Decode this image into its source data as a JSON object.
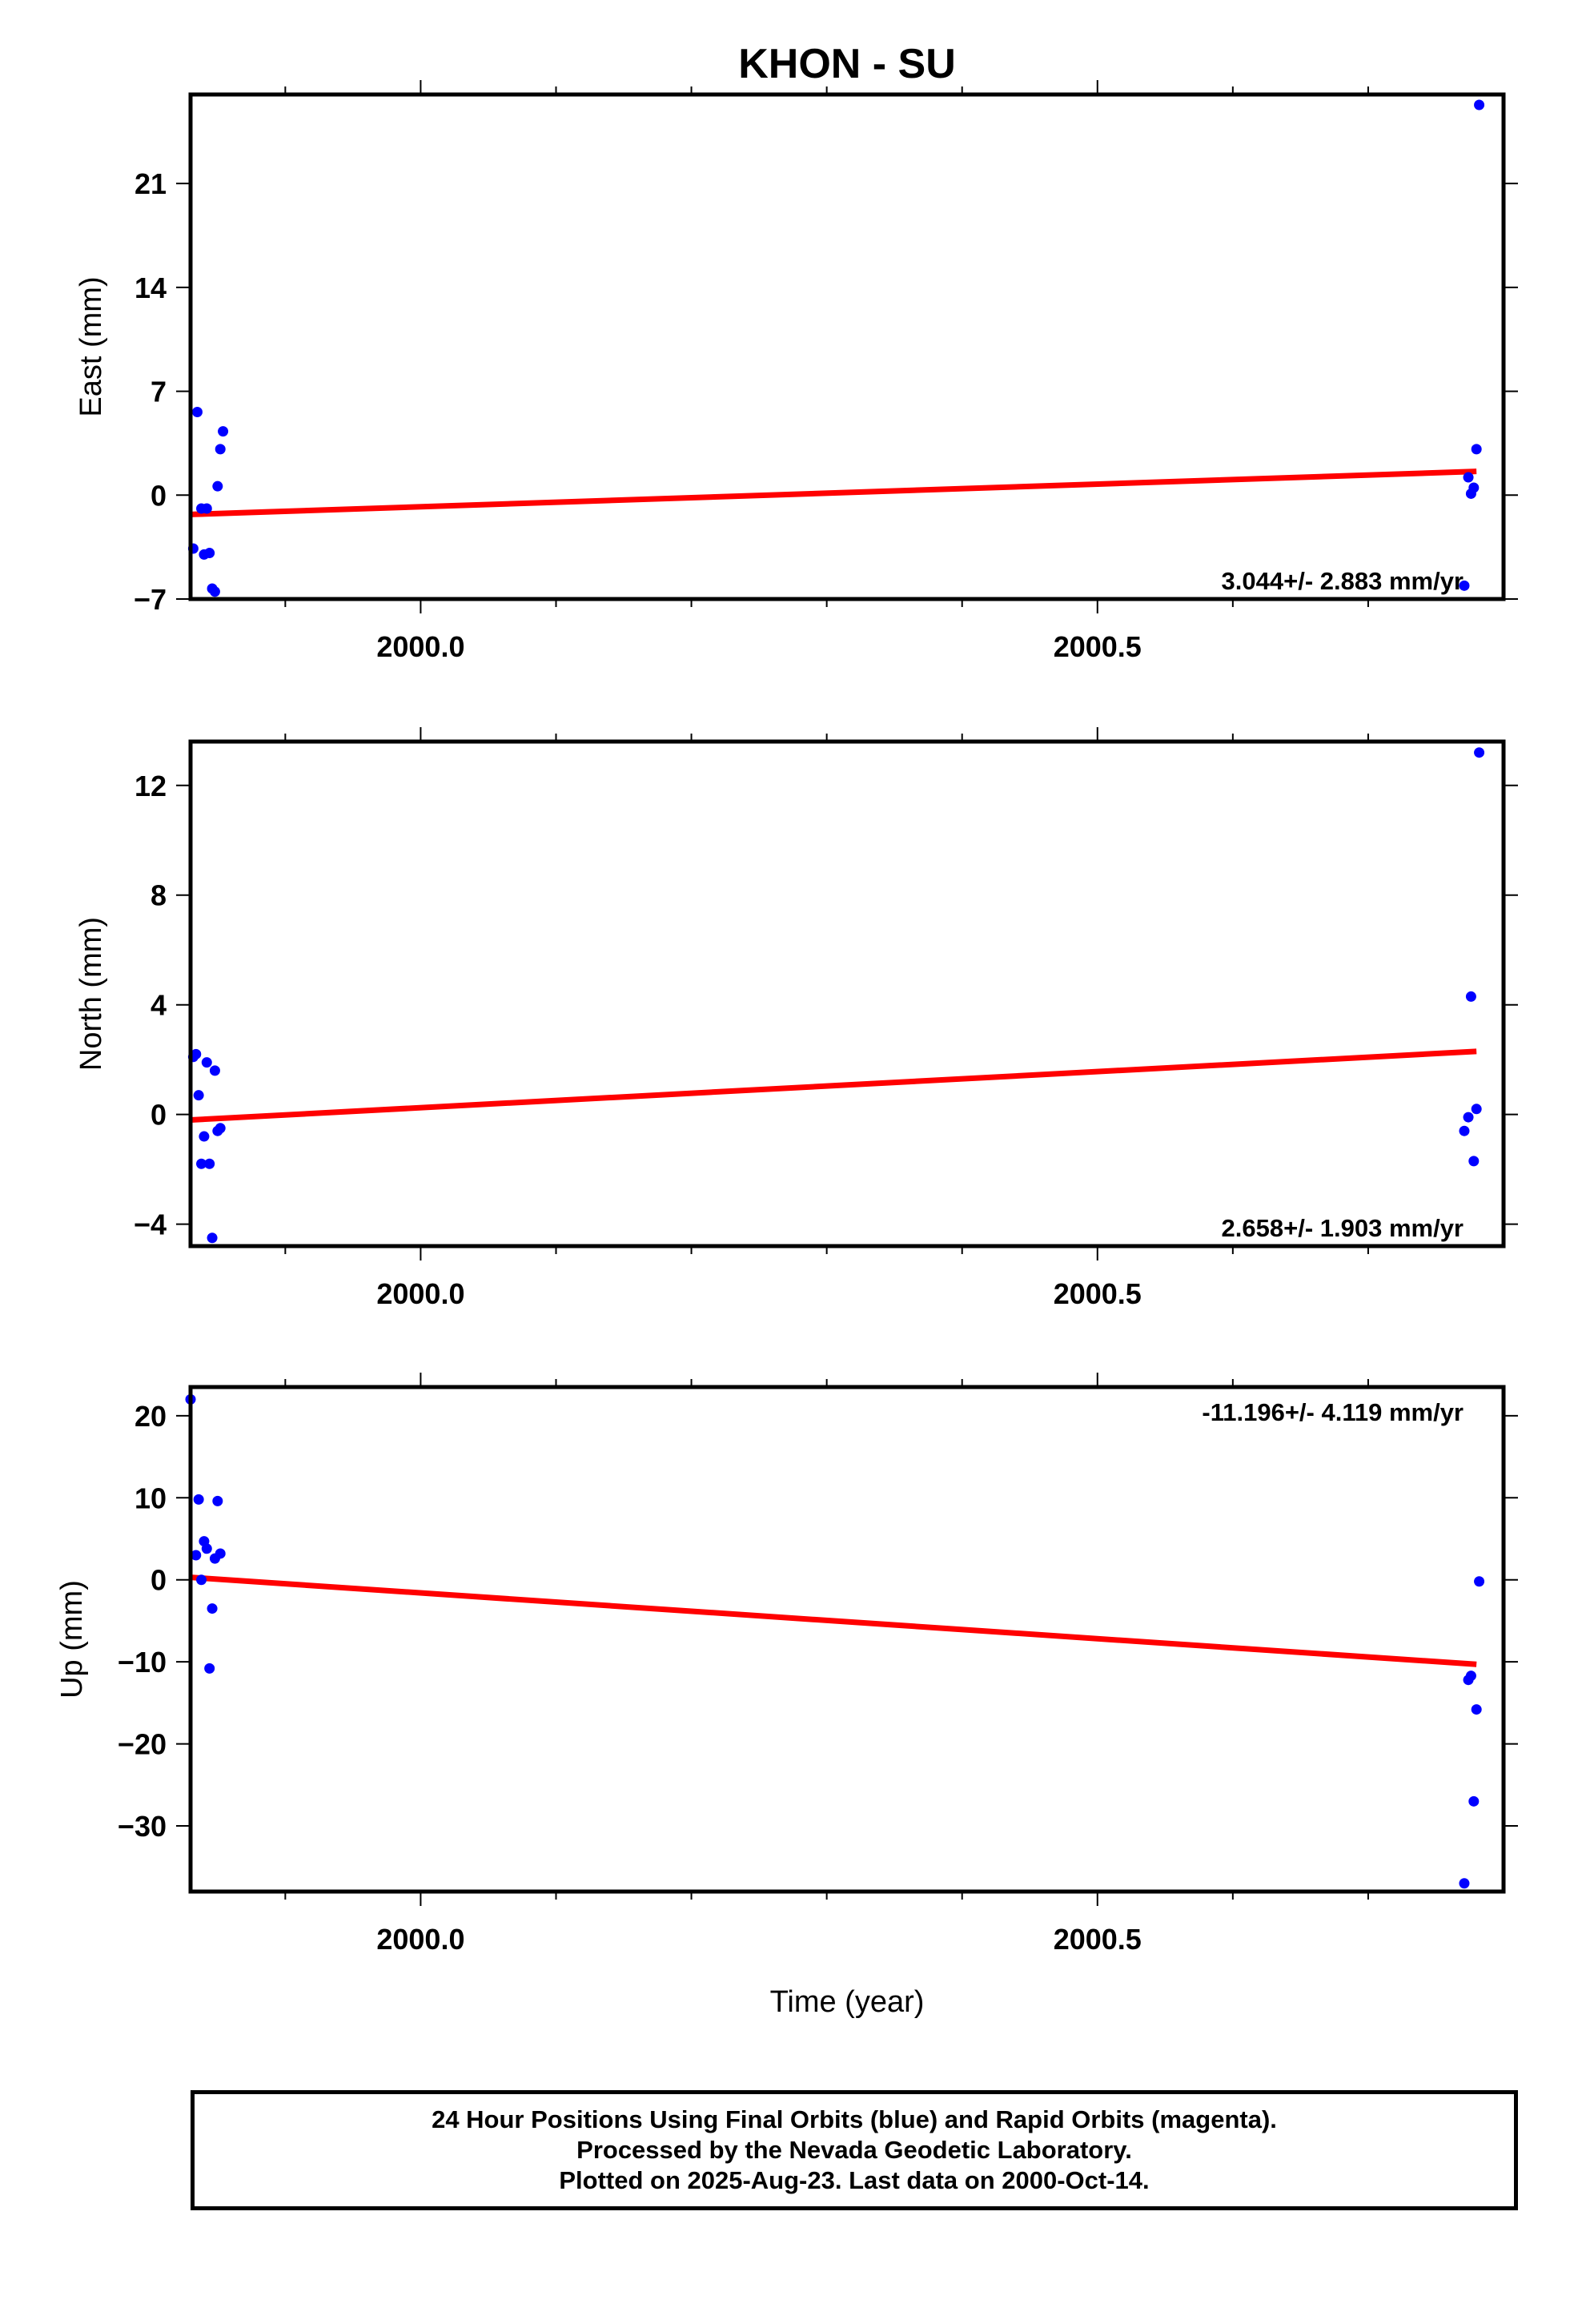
{
  "title": "KHON - SU",
  "colors": {
    "final_orbits": "#0000ff",
    "rapid_orbits": "#ff00ff",
    "trend": "#ff0000",
    "frame": "#000000"
  },
  "chart_data": [
    {
      "type": "scatter",
      "panel": "east",
      "ylabel": "East (mm)",
      "xlabel": "",
      "xlim": [
        1999.83,
        2000.8
      ],
      "ylim": [
        -7,
        27
      ],
      "xticks": [
        2000.0,
        2000.5
      ],
      "xtick_labels": [
        "2000.0",
        "2000.5"
      ],
      "yticks": [
        -7,
        0,
        7,
        14,
        21
      ],
      "ytick_labels": [
        "−7",
        "0",
        "7",
        "14",
        "21"
      ],
      "rate_label": "3.044+/- 2.883 mm/yr",
      "rate_label_position": "bottom-right",
      "series": [
        {
          "points": [
            [
              1999.835,
              5.6
            ],
            [
              1999.832,
              -3.6
            ],
            [
              1999.838,
              -0.9
            ],
            [
              1999.84,
              -4.0
            ],
            [
              1999.842,
              -0.9
            ],
            [
              1999.844,
              -3.9
            ],
            [
              1999.846,
              -6.3
            ],
            [
              1999.848,
              -6.5
            ],
            [
              1999.85,
              0.6
            ],
            [
              1999.852,
              3.1
            ],
            [
              1999.854,
              4.3
            ],
            [
              2000.771,
              -6.1
            ],
            [
              2000.774,
              1.2
            ],
            [
              2000.776,
              0.1
            ],
            [
              2000.778,
              0.5
            ],
            [
              2000.78,
              3.1
            ],
            [
              2000.782,
              26.3
            ]
          ]
        }
      ],
      "trend": [
        [
          1999.83,
          -1.3
        ],
        [
          2000.78,
          1.6
        ]
      ]
    },
    {
      "type": "scatter",
      "panel": "north",
      "ylabel": "North (mm)",
      "xlabel": "",
      "xlim": [
        1999.83,
        2000.8
      ],
      "ylim": [
        -4.8,
        13.6
      ],
      "xticks": [
        2000.0,
        2000.5
      ],
      "xtick_labels": [
        "2000.0",
        "2000.5"
      ],
      "yticks": [
        -4,
        0,
        4,
        8,
        12
      ],
      "ytick_labels": [
        "−4",
        "0",
        "4",
        "8",
        "12"
      ],
      "rate_label": "2.658+/- 1.903 mm/yr",
      "rate_label_position": "bottom-right",
      "series": [
        {
          "points": [
            [
              1999.832,
              2.1
            ],
            [
              1999.834,
              2.2
            ],
            [
              1999.836,
              0.7
            ],
            [
              1999.838,
              -1.8
            ],
            [
              1999.84,
              -0.8
            ],
            [
              1999.842,
              1.9
            ],
            [
              1999.844,
              -1.8
            ],
            [
              1999.846,
              -4.5
            ],
            [
              1999.848,
              1.6
            ],
            [
              1999.85,
              -0.6
            ],
            [
              1999.852,
              -0.5
            ],
            [
              2000.771,
              -0.6
            ],
            [
              2000.774,
              -0.1
            ],
            [
              2000.776,
              4.3
            ],
            [
              2000.778,
              -1.7
            ],
            [
              2000.78,
              0.2
            ],
            [
              2000.782,
              13.2
            ]
          ]
        }
      ],
      "trend": [
        [
          1999.83,
          -0.2
        ],
        [
          2000.78,
          2.3
        ]
      ]
    },
    {
      "type": "scatter",
      "panel": "up",
      "ylabel": "Up (mm)",
      "xlabel": "Time (year)",
      "xlim": [
        1999.83,
        2000.8
      ],
      "ylim": [
        -38,
        23.5
      ],
      "xticks": [
        2000.0,
        2000.5
      ],
      "xtick_labels": [
        "2000.0",
        "2000.5"
      ],
      "yticks": [
        -30,
        -20,
        -10,
        0,
        10,
        20
      ],
      "ytick_labels": [
        "−30",
        "−20",
        "−10",
        "0",
        "10",
        "20"
      ],
      "rate_label": "-11.196+/- 4.119 mm/yr",
      "rate_label_position": "top-right",
      "series": [
        {
          "points": [
            [
              1999.83,
              22.0
            ],
            [
              1999.834,
              3.0
            ],
            [
              1999.836,
              9.8
            ],
            [
              1999.838,
              0.0
            ],
            [
              1999.84,
              4.7
            ],
            [
              1999.842,
              3.8
            ],
            [
              1999.844,
              -10.8
            ],
            [
              1999.846,
              -3.5
            ],
            [
              1999.848,
              2.6
            ],
            [
              1999.85,
              9.6
            ],
            [
              1999.852,
              3.2
            ],
            [
              2000.771,
              -37.0
            ],
            [
              2000.774,
              -12.2
            ],
            [
              2000.776,
              -11.7
            ],
            [
              2000.778,
              -27.0
            ],
            [
              2000.78,
              -15.8
            ],
            [
              2000.782,
              -0.2
            ]
          ]
        }
      ],
      "trend": [
        [
          1999.83,
          0.3
        ],
        [
          2000.78,
          -10.3
        ]
      ]
    }
  ],
  "footer": {
    "line1": "24 Hour Positions Using Final Orbits (blue) and Rapid Orbits (magenta).",
    "line2": "Processed by the Nevada Geodetic Laboratory.",
    "line3": "Plotted on 2025-Aug-23. Last data on 2000-Oct-14."
  }
}
